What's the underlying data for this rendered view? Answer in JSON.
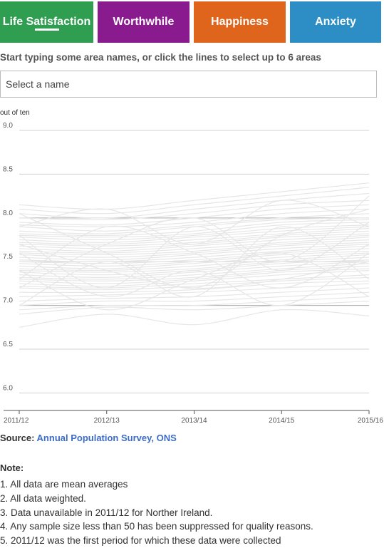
{
  "tabs": [
    {
      "label": "Life Satisfaction",
      "color": "#2f9e51",
      "active": true
    },
    {
      "label": "Worthwhile",
      "color": "#8a1b8e",
      "active": false
    },
    {
      "label": "Happiness",
      "color": "#e0651c",
      "active": false
    },
    {
      "label": "Anxiety",
      "color": "#2c8ec4",
      "active": false
    }
  ],
  "instructions": "Start typing some area names, or click the lines to select up to 6 areas",
  "search": {
    "placeholder": "Select a name",
    "value": ""
  },
  "chart_data": {
    "type": "line",
    "title": "",
    "ylabel": "out of ten",
    "xlabel": "",
    "categories": [
      "2011/12",
      "2012/13",
      "2013/14",
      "2014/15",
      "2015/16"
    ],
    "ylim": [
      5.8,
      9.0
    ],
    "yticks": [
      "6.0",
      "6.5",
      "7.0",
      "7.5",
      "8.0",
      "8.5",
      "9.0"
    ],
    "grid": true,
    "line_color": "#e6e6e6",
    "series_note": "many overlapping area lines, values roughly between 6.8 and 8.4",
    "series": [
      {
        "values": [
          8.15,
          8.1,
          8.2,
          8.3,
          8.4
        ]
      },
      {
        "values": [
          8.1,
          8.05,
          8.15,
          8.25,
          8.35
        ]
      },
      {
        "values": [
          8.05,
          8.0,
          8.1,
          8.2,
          8.28
        ]
      },
      {
        "values": [
          8.0,
          7.98,
          8.05,
          8.15,
          8.2
        ]
      },
      {
        "values": [
          7.95,
          7.92,
          8.0,
          8.1,
          8.15
        ]
      },
      {
        "values": [
          7.92,
          7.9,
          7.95,
          8.05,
          8.1
        ]
      },
      {
        "values": [
          7.9,
          7.85,
          7.92,
          8.0,
          8.05
        ]
      },
      {
        "values": [
          7.85,
          7.82,
          7.9,
          7.98,
          8.0
        ]
      },
      {
        "values": [
          7.82,
          7.8,
          7.85,
          7.95,
          7.98
        ]
      },
      {
        "values": [
          7.8,
          7.78,
          7.82,
          7.92,
          7.95
        ]
      },
      {
        "values": [
          7.78,
          7.75,
          7.8,
          7.88,
          7.92
        ]
      },
      {
        "values": [
          7.75,
          7.72,
          7.78,
          7.85,
          7.9
        ]
      },
      {
        "values": [
          7.72,
          7.7,
          7.75,
          7.82,
          7.88
        ]
      },
      {
        "values": [
          7.7,
          7.68,
          7.72,
          7.8,
          7.85
        ]
      },
      {
        "values": [
          7.68,
          7.65,
          7.7,
          7.78,
          7.82
        ]
      },
      {
        "values": [
          7.65,
          7.62,
          7.68,
          7.75,
          7.8
        ]
      },
      {
        "values": [
          7.62,
          7.6,
          7.65,
          7.72,
          7.78
        ]
      },
      {
        "values": [
          7.6,
          7.58,
          7.62,
          7.7,
          7.75
        ]
      },
      {
        "values": [
          7.58,
          7.55,
          7.6,
          7.68,
          7.72
        ]
      },
      {
        "values": [
          7.55,
          7.52,
          7.58,
          7.65,
          7.7
        ]
      },
      {
        "values": [
          7.52,
          7.5,
          7.55,
          7.62,
          7.68
        ]
      },
      {
        "values": [
          7.5,
          7.48,
          7.52,
          7.6,
          7.65
        ]
      },
      {
        "values": [
          7.48,
          7.45,
          7.5,
          7.58,
          7.62
        ]
      },
      {
        "values": [
          7.45,
          7.42,
          7.48,
          7.55,
          7.6
        ]
      },
      {
        "values": [
          7.42,
          7.4,
          7.45,
          7.52,
          7.58
        ]
      },
      {
        "values": [
          7.4,
          7.38,
          7.42,
          7.5,
          7.55
        ]
      },
      {
        "values": [
          7.38,
          7.35,
          7.4,
          7.48,
          7.52
        ]
      },
      {
        "values": [
          7.35,
          7.32,
          7.38,
          7.45,
          7.5
        ]
      },
      {
        "values": [
          7.32,
          7.3,
          7.35,
          7.42,
          7.48
        ]
      },
      {
        "values": [
          7.3,
          7.28,
          7.32,
          7.4,
          7.45
        ]
      },
      {
        "values": [
          7.28,
          7.25,
          7.3,
          7.38,
          7.42
        ]
      },
      {
        "values": [
          7.25,
          7.22,
          7.28,
          7.35,
          7.4
        ]
      },
      {
        "values": [
          7.22,
          7.2,
          7.25,
          7.3,
          7.35
        ]
      },
      {
        "values": [
          7.2,
          7.18,
          7.22,
          7.28,
          7.32
        ]
      },
      {
        "values": [
          7.15,
          7.15,
          7.18,
          7.25,
          7.28
        ]
      },
      {
        "values": [
          7.1,
          7.12,
          7.15,
          7.2,
          7.25
        ]
      },
      {
        "values": [
          7.05,
          7.08,
          7.1,
          7.15,
          7.2
        ]
      },
      {
        "values": [
          7.0,
          7.05,
          7.05,
          7.1,
          7.15
        ]
      },
      {
        "values": [
          6.95,
          7.0,
          7.0,
          7.05,
          7.1
        ]
      },
      {
        "values": [
          6.9,
          6.98,
          6.95,
          7.0,
          7.05
        ]
      },
      {
        "values": [
          6.75,
          6.9,
          6.78,
          6.95,
          6.88
        ]
      },
      {
        "values": [
          8.05,
          7.6,
          7.2,
          7.8,
          8.1
        ]
      },
      {
        "values": [
          7.3,
          7.9,
          7.6,
          7.2,
          7.7
        ]
      },
      {
        "values": [
          7.8,
          7.2,
          7.9,
          7.4,
          7.95
        ]
      },
      {
        "values": [
          7.0,
          7.5,
          7.1,
          7.9,
          7.3
        ]
      },
      {
        "values": [
          7.6,
          7.1,
          7.4,
          7.0,
          7.6
        ]
      },
      {
        "values": [
          7.9,
          8.1,
          7.7,
          8.2,
          7.9
        ]
      },
      {
        "values": [
          7.4,
          6.95,
          7.3,
          7.6,
          7.1
        ]
      },
      {
        "values": [
          7.2,
          7.7,
          8.0,
          7.5,
          8.25
        ]
      },
      {
        "values": [
          7.7,
          7.4,
          7.2,
          7.3,
          7.5
        ]
      }
    ]
  },
  "source": {
    "label": "Source:",
    "link": "Annual Population Survey, ONS"
  },
  "notes": {
    "title": "Note:",
    "items": [
      "1. All data are mean averages",
      "2. All data weighted.",
      "3. Data unavailable in 2011/12 for Norther Ireland.",
      "4. Any sample size less than 50 has been suppressed for quality reasons.",
      "5. 2011/12 was the first period for which these data were collected"
    ]
  }
}
